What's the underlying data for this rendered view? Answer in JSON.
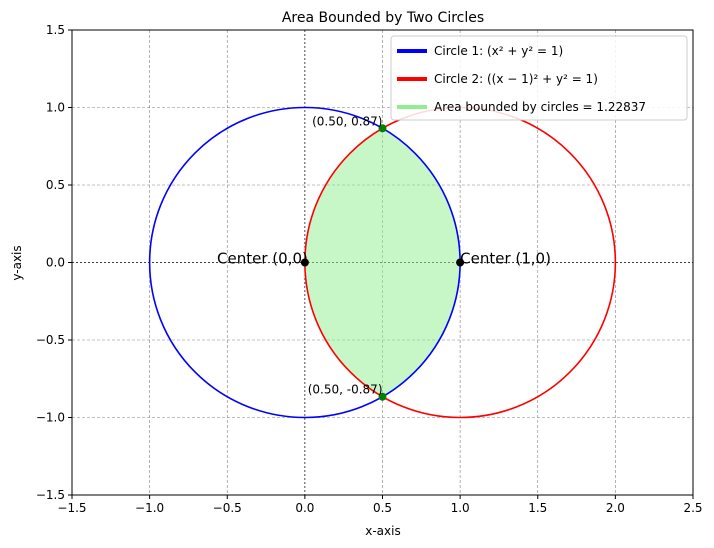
{
  "chart_data": {
    "type": "line",
    "title": "Area Bounded by Two Circles",
    "xlabel": "x-axis",
    "ylabel": "y-axis",
    "xlim": [
      -1.5,
      2.5
    ],
    "ylim": [
      -1.5,
      1.5
    ],
    "grid": true,
    "legend_position": "top-right",
    "x_ticks": [
      -1.5,
      -1.0,
      -0.5,
      0.0,
      0.5,
      1.0,
      1.5,
      2.0,
      2.5
    ],
    "x_tick_labels": [
      "−1.5",
      "−1.0",
      "−0.5",
      "0.0",
      "0.5",
      "1.0",
      "1.5",
      "2.0",
      "2.5"
    ],
    "y_ticks": [
      -1.5,
      -1.0,
      -0.5,
      0.0,
      0.5,
      1.0,
      1.5
    ],
    "y_tick_labels": [
      "−1.5",
      "−1.0",
      "−0.5",
      "0.0",
      "0.5",
      "1.0",
      "1.5"
    ],
    "series": [
      {
        "name": "Circle 1: (x² + y² = 1)",
        "center": [
          0,
          0
        ],
        "radius": 1,
        "color": "#0000ff"
      },
      {
        "name": "Circle 2: ((x − 1)² + y² = 1)",
        "center": [
          1,
          0
        ],
        "radius": 1,
        "color": "#ff0000"
      }
    ],
    "area": {
      "name": "Area bounded by circles = 1.22837",
      "value": 1.22837,
      "color": "#90ee90"
    },
    "intersections": [
      {
        "x": 0.5,
        "y": 0.866,
        "label": "(0.50, 0.87)",
        "color": "#008000"
      },
      {
        "x": 0.5,
        "y": -0.866,
        "label": "(0.50, -0.87)",
        "color": "#008000"
      }
    ],
    "centers": [
      {
        "x": 0,
        "y": 0,
        "label": "Center (0,0)",
        "color": "#000000"
      },
      {
        "x": 1,
        "y": 0,
        "label": "Center (1,0)",
        "color": "#000000"
      }
    ]
  }
}
